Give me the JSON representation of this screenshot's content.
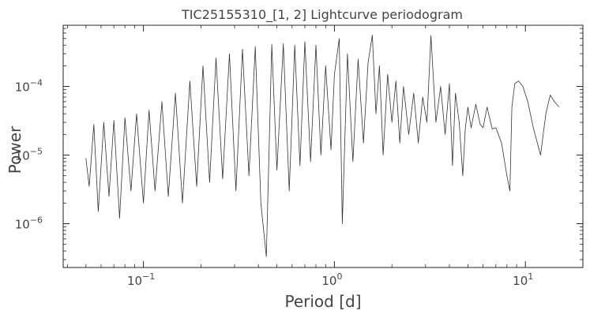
{
  "chart_data": {
    "type": "line",
    "title": "TIC25155310_[1, 2] Lightcurve periodogram",
    "xlabel": "Period [d]",
    "ylabel": "Power",
    "xscale": "log",
    "yscale": "log",
    "xlim": [
      0.038,
      20
    ],
    "ylim": [
      2.3e-07,
      0.00078
    ],
    "grid": false,
    "line_color": "#333333",
    "x_ticks": [
      {
        "value": 0.1,
        "base": "10",
        "exp": "−1"
      },
      {
        "value": 1,
        "base": "10",
        "exp": "0"
      },
      {
        "value": 10,
        "base": "10",
        "exp": "1"
      }
    ],
    "y_ticks": [
      {
        "value": 1e-06,
        "base": "10",
        "exp": "−6"
      },
      {
        "value": 1e-05,
        "base": "10",
        "exp": "−5"
      },
      {
        "value": 0.0001,
        "base": "10",
        "exp": "−4"
      }
    ],
    "series": [
      {
        "x": [
          0.05,
          0.052,
          0.055,
          0.058,
          0.062,
          0.066,
          0.07,
          0.075,
          0.08,
          0.086,
          0.092,
          0.1,
          0.107,
          0.115,
          0.125,
          0.135,
          0.147,
          0.16,
          0.175,
          0.19,
          0.205,
          0.222,
          0.24,
          0.26,
          0.282,
          0.305,
          0.33,
          0.357,
          0.385,
          0.412,
          0.44,
          0.47,
          0.5,
          0.54,
          0.58,
          0.62,
          0.66,
          0.7,
          0.75,
          0.8,
          0.85,
          0.9,
          0.96,
          1.0,
          1.06,
          1.1,
          1.17,
          1.25,
          1.33,
          1.42,
          1.5,
          1.58,
          1.65,
          1.72,
          1.8,
          1.9,
          2.0,
          2.1,
          2.2,
          2.3,
          2.45,
          2.6,
          2.75,
          2.9,
          3.05,
          3.2,
          3.4,
          3.6,
          3.8,
          4.0,
          4.15,
          4.3,
          4.5,
          4.7,
          4.85,
          5.0,
          5.2,
          5.5,
          5.8,
          6.0,
          6.3,
          6.7,
          7.0,
          7.5,
          8.0,
          8.3,
          8.5,
          8.8,
          9.2,
          9.7,
          10.3,
          11.0,
          12.0,
          12.8,
          13.5,
          14.2,
          15.0
        ],
        "y": [
          9e-06,
          3.5e-06,
          2.8e-05,
          1.5e-06,
          3e-05,
          2.5e-06,
          3.2e-05,
          1.2e-06,
          3.5e-05,
          3e-06,
          4e-05,
          2e-06,
          4.5e-05,
          3e-06,
          6e-05,
          2.5e-06,
          8e-05,
          2e-06,
          0.00012,
          3.5e-06,
          0.0002,
          4e-06,
          0.00026,
          4.5e-06,
          0.0003,
          3e-06,
          0.00035,
          5e-06,
          0.00038,
          2e-06,
          3.3e-07,
          0.00041,
          6e-06,
          0.00042,
          3e-06,
          0.0004,
          7e-06,
          0.00045,
          8e-06,
          0.0004,
          1e-05,
          0.0002,
          1.2e-05,
          0.00015,
          0.0005,
          1e-06,
          0.0003,
          8e-06,
          0.00025,
          1.5e-05,
          0.00022,
          0.00056,
          4e-05,
          0.0002,
          1e-05,
          0.00015,
          3e-05,
          0.00012,
          1.5e-05,
          0.0001,
          2e-05,
          8e-05,
          1.5e-05,
          7e-05,
          3e-05,
          0.00055,
          3e-05,
          0.0001,
          2e-05,
          0.00011,
          7e-06,
          8e-05,
          3e-05,
          5e-06,
          2.5e-05,
          5e-05,
          2.5e-05,
          5.5e-05,
          2.8e-05,
          2.5e-05,
          5e-05,
          2.4e-05,
          2.5e-05,
          1.5e-05,
          5e-06,
          3e-06,
          5e-05,
          0.00011,
          0.00012,
          0.0001,
          6e-05,
          2.5e-05,
          1e-05,
          4e-05,
          7.5e-05,
          6e-05,
          5e-05
        ]
      }
    ]
  }
}
